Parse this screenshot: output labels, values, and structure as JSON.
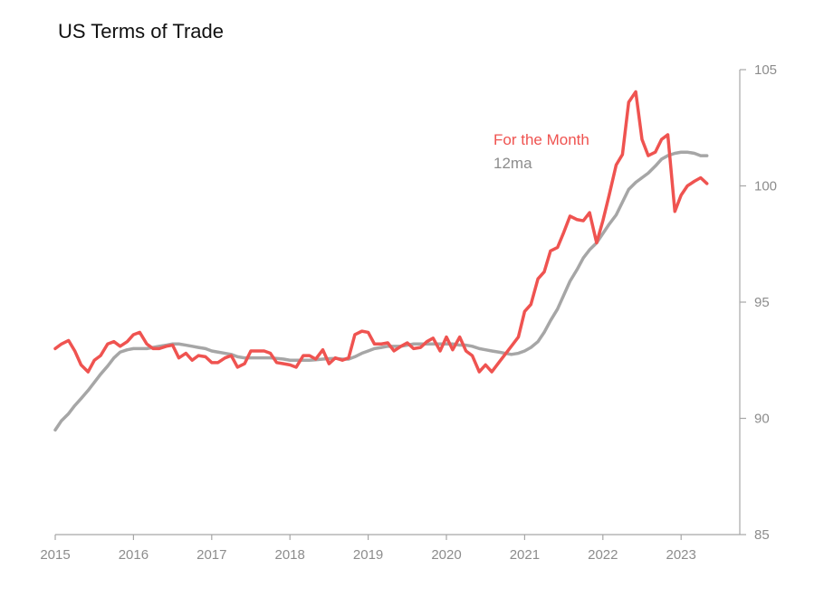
{
  "chart_data": {
    "type": "line",
    "title": "US Terms of Trade",
    "xlabel": "",
    "ylabel": "",
    "xlim": [
      2015,
      2023.75
    ],
    "ylim": [
      85,
      105
    ],
    "x_ticks": [
      2015,
      2016,
      2017,
      2018,
      2019,
      2020,
      2021,
      2022,
      2023
    ],
    "x_tick_labels": [
      "2015",
      "2016",
      "2017",
      "2018",
      "2019",
      "2020",
      "2021",
      "2022",
      "2023"
    ],
    "y_ticks": [
      85,
      90,
      95,
      100,
      105
    ],
    "y_tick_labels": [
      "85",
      "90",
      "95",
      "100",
      "105"
    ],
    "y_axis_side": "right",
    "grid": false,
    "legend_position": "upper-middle, inline text",
    "series": [
      {
        "name": "For the Month",
        "color": "#ef5350",
        "x": [
          2015.0,
          2015.08,
          2015.17,
          2015.25,
          2015.33,
          2015.42,
          2015.5,
          2015.58,
          2015.67,
          2015.75,
          2015.83,
          2015.92,
          2016.0,
          2016.08,
          2016.17,
          2016.25,
          2016.33,
          2016.42,
          2016.5,
          2016.58,
          2016.67,
          2016.75,
          2016.83,
          2016.92,
          2017.0,
          2017.08,
          2017.17,
          2017.25,
          2017.33,
          2017.42,
          2017.5,
          2017.58,
          2017.67,
          2017.75,
          2017.83,
          2017.92,
          2018.0,
          2018.08,
          2018.17,
          2018.25,
          2018.33,
          2018.42,
          2018.5,
          2018.58,
          2018.67,
          2018.75,
          2018.83,
          2018.92,
          2019.0,
          2019.08,
          2019.17,
          2019.25,
          2019.33,
          2019.42,
          2019.5,
          2019.58,
          2019.67,
          2019.75,
          2019.83,
          2019.92,
          2020.0,
          2020.08,
          2020.17,
          2020.25,
          2020.33,
          2020.42,
          2020.5,
          2020.58,
          2020.67,
          2020.75,
          2020.83,
          2020.92,
          2021.0,
          2021.08,
          2021.17,
          2021.25,
          2021.33,
          2021.42,
          2021.5,
          2021.58,
          2021.67,
          2021.75,
          2021.83,
          2021.92,
          2022.0,
          2022.08,
          2022.17,
          2022.25,
          2022.33,
          2022.42,
          2022.5,
          2022.58,
          2022.67,
          2022.75,
          2022.83,
          2022.92,
          2023.0,
          2023.08,
          2023.17,
          2023.25,
          2023.33
        ],
        "values": [
          93.0,
          93.2,
          93.35,
          92.9,
          92.3,
          92.0,
          92.5,
          92.7,
          93.2,
          93.3,
          93.1,
          93.3,
          93.6,
          93.7,
          93.2,
          93.0,
          93.0,
          93.1,
          93.15,
          92.6,
          92.8,
          92.5,
          92.7,
          92.65,
          92.4,
          92.4,
          92.6,
          92.7,
          92.2,
          92.35,
          92.9,
          92.9,
          92.9,
          92.8,
          92.4,
          92.35,
          92.3,
          92.2,
          92.7,
          92.7,
          92.55,
          92.95,
          92.35,
          92.6,
          92.5,
          92.6,
          93.6,
          93.75,
          93.7,
          93.2,
          93.2,
          93.25,
          92.9,
          93.1,
          93.25,
          93.0,
          93.05,
          93.3,
          93.45,
          92.9,
          93.5,
          92.95,
          93.5,
          92.9,
          92.7,
          92.0,
          92.3,
          92.0,
          92.4,
          92.75,
          93.1,
          93.5,
          94.6,
          94.9,
          96.0,
          96.3,
          97.2,
          97.35,
          98.0,
          98.7,
          98.55,
          98.5,
          98.85,
          97.55,
          98.5,
          99.6,
          100.9,
          101.35,
          103.6,
          104.05,
          102.0,
          101.3,
          101.45,
          102.0,
          102.2,
          98.9,
          99.6,
          100.0,
          100.2,
          100.35,
          100.1
        ]
      },
      {
        "name": "12ma",
        "color": "#a6a6a6",
        "x": [
          2015.0,
          2015.08,
          2015.17,
          2015.25,
          2015.33,
          2015.42,
          2015.5,
          2015.58,
          2015.67,
          2015.75,
          2015.83,
          2015.92,
          2016.0,
          2016.08,
          2016.17,
          2016.25,
          2016.33,
          2016.42,
          2016.5,
          2016.58,
          2016.67,
          2016.75,
          2016.83,
          2016.92,
          2017.0,
          2017.08,
          2017.17,
          2017.25,
          2017.33,
          2017.42,
          2017.5,
          2017.58,
          2017.67,
          2017.75,
          2017.83,
          2017.92,
          2018.0,
          2018.08,
          2018.17,
          2018.25,
          2018.33,
          2018.42,
          2018.5,
          2018.58,
          2018.67,
          2018.75,
          2018.83,
          2018.92,
          2019.0,
          2019.08,
          2019.17,
          2019.25,
          2019.33,
          2019.42,
          2019.5,
          2019.58,
          2019.67,
          2019.75,
          2019.83,
          2019.92,
          2020.0,
          2020.08,
          2020.17,
          2020.25,
          2020.33,
          2020.42,
          2020.5,
          2020.58,
          2020.67,
          2020.75,
          2020.83,
          2020.92,
          2021.0,
          2021.08,
          2021.17,
          2021.25,
          2021.33,
          2021.42,
          2021.5,
          2021.58,
          2021.67,
          2021.75,
          2021.83,
          2021.92,
          2022.0,
          2022.08,
          2022.17,
          2022.25,
          2022.33,
          2022.42,
          2022.5,
          2022.58,
          2022.67,
          2022.75,
          2022.83,
          2022.92,
          2023.0,
          2023.08,
          2023.17,
          2023.25,
          2023.33
        ],
        "values": [
          89.5,
          89.9,
          90.2,
          90.55,
          90.85,
          91.2,
          91.55,
          91.9,
          92.25,
          92.6,
          92.85,
          92.95,
          93.0,
          93.0,
          93.0,
          93.05,
          93.1,
          93.15,
          93.2,
          93.2,
          93.15,
          93.1,
          93.05,
          93.0,
          92.9,
          92.85,
          92.8,
          92.75,
          92.65,
          92.6,
          92.6,
          92.6,
          92.6,
          92.6,
          92.58,
          92.55,
          92.5,
          92.5,
          92.5,
          92.5,
          92.52,
          92.55,
          92.57,
          92.58,
          92.55,
          92.55,
          92.65,
          92.8,
          92.9,
          93.0,
          93.05,
          93.1,
          93.1,
          93.1,
          93.15,
          93.2,
          93.2,
          93.2,
          93.2,
          93.2,
          93.2,
          93.2,
          93.15,
          93.15,
          93.1,
          93.0,
          92.95,
          92.9,
          92.85,
          92.8,
          92.75,
          92.8,
          92.9,
          93.05,
          93.3,
          93.7,
          94.2,
          94.7,
          95.3,
          95.9,
          96.4,
          96.9,
          97.25,
          97.55,
          97.95,
          98.35,
          98.75,
          99.3,
          99.85,
          100.15,
          100.35,
          100.55,
          100.85,
          101.15,
          101.3,
          101.4,
          101.45,
          101.45,
          101.4,
          101.3,
          101.3
        ]
      }
    ],
    "legend": [
      {
        "label": "For the Month",
        "color": "#ef5350"
      },
      {
        "label": "12ma",
        "color": "#8c8c8c"
      }
    ]
  }
}
